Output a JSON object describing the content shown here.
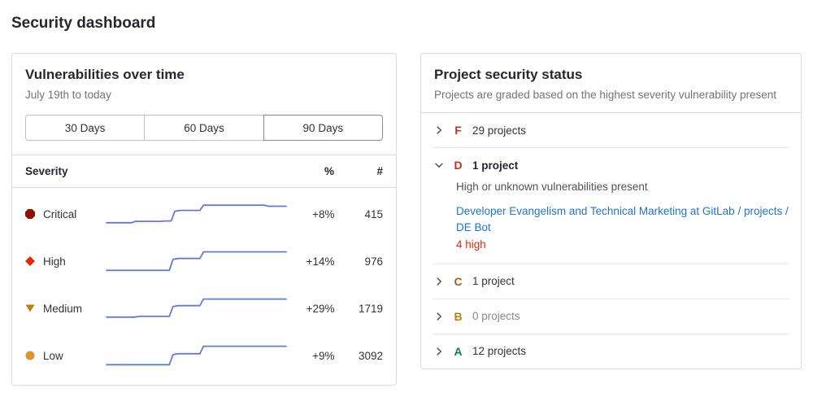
{
  "page": {
    "title": "Security dashboard"
  },
  "colors": {
    "sparkline": "#617ae2",
    "link": "#1f75cb",
    "divider": "#e8e8e8"
  },
  "vulnerabilities_card": {
    "title": "Vulnerabilities over time",
    "subtitle": "July 19th to today",
    "range_buttons": [
      {
        "label": "30 Days",
        "selected": false
      },
      {
        "label": "60 Days",
        "selected": false
      },
      {
        "label": "90 Days",
        "selected": true
      }
    ],
    "table": {
      "headers": {
        "severity": "Severity",
        "percent": "%",
        "count": "#"
      },
      "rows": [
        {
          "severity": "Critical",
          "icon": "critical-severity-icon",
          "icon_shape": "octagon",
          "icon_color": "#8d1300",
          "percent_change": "+8%",
          "count": "415",
          "sparkline": [
            [
              0,
              12
            ],
            [
              14,
              12
            ],
            [
              16,
              18
            ],
            [
              30,
              18
            ],
            [
              33,
              20
            ],
            [
              36,
              20
            ],
            [
              38,
              64
            ],
            [
              41,
              68
            ],
            [
              52,
              68
            ],
            [
              54,
              92
            ],
            [
              88,
              92
            ],
            [
              90,
              87
            ],
            [
              100,
              87
            ]
          ]
        },
        {
          "severity": "High",
          "icon": "high-severity-icon",
          "icon_shape": "diamond",
          "icon_color": "#dd2b0e",
          "percent_change": "+14%",
          "count": "976",
          "sparkline": [
            [
              0,
              10
            ],
            [
              35,
              10
            ],
            [
              37,
              60
            ],
            [
              40,
              64
            ],
            [
              52,
              64
            ],
            [
              54,
              94
            ],
            [
              100,
              94
            ]
          ]
        },
        {
          "severity": "Medium",
          "icon": "medium-severity-icon",
          "icon_shape": "triangle-down",
          "icon_color": "#c17d10",
          "percent_change": "+29%",
          "count": "1719",
          "sparkline": [
            [
              0,
              12
            ],
            [
              16,
              12
            ],
            [
              18,
              15
            ],
            [
              35,
              15
            ],
            [
              37,
              60
            ],
            [
              40,
              64
            ],
            [
              52,
              64
            ],
            [
              54,
              94
            ],
            [
              100,
              94
            ]
          ]
        },
        {
          "severity": "Low",
          "icon": "low-severity-icon",
          "icon_shape": "circle",
          "icon_color": "#d99530",
          "percent_change": "+9%",
          "count": "3092",
          "sparkline": [
            [
              0,
              10
            ],
            [
              35,
              10
            ],
            [
              37,
              56
            ],
            [
              40,
              60
            ],
            [
              52,
              60
            ],
            [
              54,
              94
            ],
            [
              100,
              94
            ]
          ]
        }
      ]
    }
  },
  "project_status_card": {
    "title": "Project security status",
    "subtitle": "Projects are graded based on the highest severity vulnerability present",
    "grades": [
      {
        "grade": "F",
        "grade_color": "#c0341d",
        "label": "29 projects",
        "expanded": false,
        "muted": false
      },
      {
        "grade": "D",
        "grade_color": "#c0341d",
        "label": "1 project",
        "expanded": true,
        "muted": false,
        "description": "High or unknown vulnerabilities present",
        "project_link": "Developer Evangelism and Technical Marketing at GitLab / projects / DE Bot",
        "vulnerability_summary": "4 high"
      },
      {
        "grade": "C",
        "grade_color": "#b45a12",
        "label": "1 project",
        "expanded": false,
        "muted": false
      },
      {
        "grade": "B",
        "grade_color": "#c17d10",
        "label": "0 projects",
        "expanded": false,
        "muted": true
      },
      {
        "grade": "A",
        "grade_color": "#108548",
        "label": "12 projects",
        "expanded": false,
        "muted": false
      }
    ]
  }
}
